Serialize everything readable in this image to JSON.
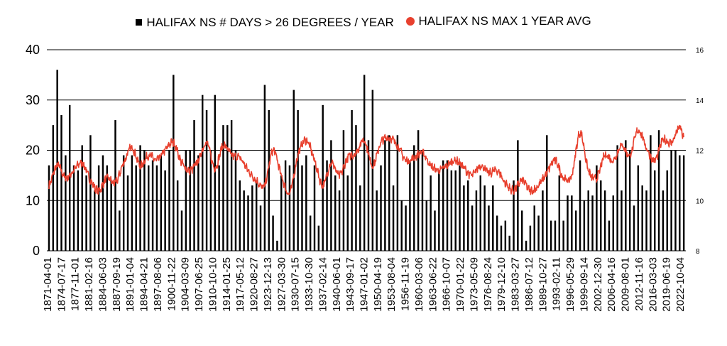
{
  "chart_data": {
    "type": "bar+line",
    "title": "",
    "legend": {
      "placement": "top-center",
      "entries": [
        {
          "name": "HALIFAX NS # DAYS > 26  DEGREES  / YEAR",
          "color": "#000000",
          "marker": "square"
        },
        {
          "name": "HALIFAX NS  MAX 1 YEAR AVG",
          "color": "#e8402e",
          "marker": "circle"
        }
      ]
    },
    "x_tick_labels": [
      "1871-04-01",
      "1874-07-17",
      "1877-11-01",
      "1881-02-16",
      "1884-06-03",
      "1887-09-19",
      "1891-01-04",
      "1894-04-21",
      "1897-08-06",
      "1900-11-22",
      "1904-03-09",
      "1907-06-25",
      "1910-10-10",
      "1914-01-25",
      "1917-05-12",
      "1920-08-27",
      "1923-12-13",
      "1927-03-30",
      "1930-07-15",
      "1933-10-30",
      "1937-02-14",
      "1940-06-01",
      "1943-09-17",
      "1947-01-02",
      "1950-04-19",
      "1953-08-04",
      "1956-11-19",
      "1960-03-06",
      "1963-06-22",
      "1966-10-07",
      "1970-01-22",
      "1973-05-09",
      "1976-08-24",
      "1979-12-10",
      "1983-03-27",
      "1986-07-12",
      "1989-10-27",
      "1993-02-11",
      "1996-05-29",
      "1999-09-14",
      "2002-12-30",
      "2006-04-16",
      "2009-08-01",
      "2012-11-16",
      "2016-03-03",
      "2019-06-19",
      "2022-10-04"
    ],
    "y_left": {
      "min": 0,
      "max": 40,
      "ticks": [
        0,
        10,
        20,
        30,
        40
      ],
      "gridlines": true
    },
    "y_right": {
      "min": 8,
      "max": 16,
      "ticks": [
        8,
        10,
        12,
        14,
        16
      ]
    },
    "bars": {
      "name": "HALIFAX NS # DAYS > 26  DEGREES  / YEAR",
      "years": [
        1871,
        1872,
        1873,
        1874,
        1875,
        1876,
        1877,
        1878,
        1879,
        1880,
        1881,
        1882,
        1883,
        1884,
        1885,
        1886,
        1887,
        1888,
        1889,
        1890,
        1891,
        1892,
        1893,
        1894,
        1895,
        1896,
        1897,
        1898,
        1899,
        1900,
        1901,
        1902,
        1903,
        1904,
        1905,
        1906,
        1907,
        1908,
        1909,
        1910,
        1911,
        1912,
        1913,
        1914,
        1915,
        1916,
        1917,
        1918,
        1919,
        1920,
        1921,
        1922,
        1923,
        1924,
        1925,
        1926,
        1927,
        1928,
        1929,
        1930,
        1931,
        1932,
        1933,
        1934,
        1935,
        1936,
        1937,
        1938,
        1939,
        1940,
        1941,
        1942,
        1943,
        1944,
        1945,
        1946,
        1947,
        1948,
        1949,
        1950,
        1951,
        1952,
        1953,
        1954,
        1955,
        1956,
        1957,
        1958,
        1959,
        1960,
        1961,
        1962,
        1963,
        1964,
        1965,
        1966,
        1967,
        1968,
        1969,
        1970,
        1971,
        1972,
        1973,
        1974,
        1975,
        1976,
        1977,
        1978,
        1979,
        1980,
        1981,
        1982,
        1983,
        1984,
        1985,
        1986,
        1987,
        1988,
        1989,
        1990,
        1991,
        1992,
        1993,
        1994,
        1995,
        1996,
        1997,
        1998,
        1999,
        2000,
        2001,
        2002,
        2003,
        2004,
        2005,
        2006,
        2007,
        2008,
        2009,
        2010,
        2011,
        2012,
        2013,
        2014,
        2015,
        2016,
        2017,
        2018,
        2019,
        2020,
        2021,
        2022,
        2023,
        2024
      ],
      "values": [
        17,
        25,
        36,
        27,
        19,
        29,
        17,
        16,
        21,
        15,
        23,
        12,
        17,
        19,
        17,
        14,
        26,
        8,
        19,
        15,
        19,
        17,
        21,
        20,
        17,
        18,
        17,
        19,
        16,
        20,
        35,
        14,
        8,
        20,
        20,
        26,
        19,
        31,
        28,
        20,
        31,
        17,
        25,
        25,
        26,
        20,
        14,
        12,
        11,
        13,
        14,
        9,
        33,
        28,
        7,
        2,
        15,
        18,
        17,
        32,
        28,
        17,
        19,
        7,
        17,
        5,
        29,
        18,
        22,
        15,
        12,
        24,
        15,
        28,
        25,
        13,
        35,
        22,
        32,
        12,
        17,
        22,
        23,
        13,
        23,
        10,
        9,
        18,
        21,
        24,
        20,
        10,
        15,
        8,
        16,
        18,
        18,
        16,
        16,
        17,
        13,
        14,
        9,
        12,
        15,
        13,
        9,
        13,
        7,
        5,
        6,
        3,
        14,
        22,
        8,
        2,
        5,
        9,
        7,
        12,
        23,
        6,
        6,
        15,
        6,
        11,
        11,
        8,
        18,
        10,
        12,
        11,
        17,
        14,
        12,
        6,
        11,
        21,
        12,
        22,
        20,
        9,
        17,
        13,
        12,
        23,
        16,
        24,
        12,
        16,
        20,
        20,
        19,
        19
      ]
    },
    "line": {
      "name": "HALIFAX NS  MAX 1 YEAR AVG",
      "axis": "right",
      "years": [
        1871,
        1873,
        1875,
        1877,
        1879,
        1881,
        1883,
        1885,
        1887,
        1889,
        1891,
        1893,
        1895,
        1897,
        1899,
        1901,
        1903,
        1905,
        1907,
        1909,
        1911,
        1913,
        1915,
        1917,
        1919,
        1921,
        1923,
        1925,
        1927,
        1929,
        1931,
        1933,
        1935,
        1937,
        1939,
        1941,
        1943,
        1945,
        1947,
        1949,
        1951,
        1953,
        1955,
        1957,
        1959,
        1961,
        1963,
        1965,
        1967,
        1969,
        1971,
        1973,
        1975,
        1977,
        1979,
        1981,
        1983,
        1985,
        1987,
        1989,
        1991,
        1993,
        1995,
        1997,
        1999,
        2001,
        2003,
        2005,
        2007,
        2009,
        2011,
        2013,
        2015,
        2017,
        2019,
        2021,
        2023,
        2024
      ],
      "values": [
        10.6,
        11.4,
        10.9,
        11.2,
        11.5,
        10.8,
        10.4,
        10.9,
        10.7,
        11.5,
        12.1,
        11.4,
        11.8,
        11.6,
        12.0,
        12.3,
        11.5,
        11.2,
        11.6,
        12.3,
        11.3,
        12.2,
        11.8,
        11.7,
        11.2,
        10.8,
        10.6,
        12.0,
        11.0,
        10.3,
        11.8,
        12.4,
        11.6,
        10.6,
        11.5,
        11.0,
        11.7,
        11.9,
        12.4,
        11.4,
        12.3,
        12.5,
        12.2,
        11.6,
        11.7,
        11.9,
        11.4,
        11.2,
        11.4,
        11.6,
        11.3,
        11.0,
        11.4,
        11.1,
        11.2,
        10.7,
        10.4,
        10.8,
        10.4,
        10.6,
        11.1,
        11.6,
        10.9,
        11.0,
        12.7,
        11.2,
        10.9,
        11.8,
        11.6,
        12.2,
        11.8,
        12.8,
        12.1,
        11.6,
        12.4,
        12.3,
        12.9,
        12.5
      ]
    }
  }
}
